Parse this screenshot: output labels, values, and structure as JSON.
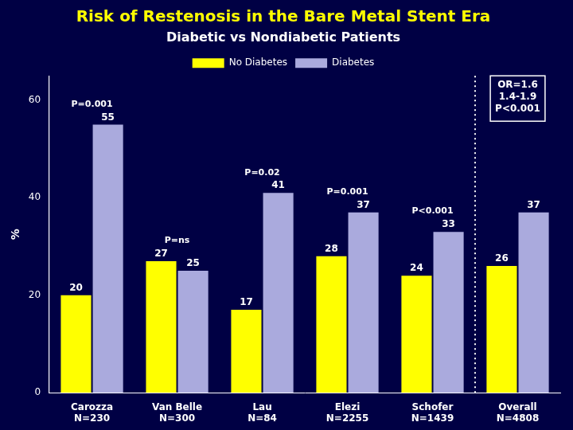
{
  "chart_data": {
    "type": "bar",
    "title": "Risk of Restenosis in the Bare Metal Stent Era",
    "subtitle": "Diabetic vs Nondiabetic Patients",
    "categories": [
      "Carozza",
      "Van Belle",
      "Lau",
      "Elezi",
      "Schofer",
      "Overall"
    ],
    "n_values": [
      "N=230",
      "N=300",
      "N=84",
      "N=2255",
      "N=1439",
      "N=4808"
    ],
    "series": [
      {
        "name": "No Diabetes",
        "color": "#FFFF00",
        "values": [
          20,
          27,
          17,
          28,
          24,
          26
        ]
      },
      {
        "name": "Diabetes",
        "color": "#AAAADD",
        "values": [
          55,
          25,
          41,
          37,
          33,
          37
        ]
      }
    ],
    "ylabel": "%",
    "ylim": [
      0,
      65
    ],
    "yticks": [
      0,
      20,
      40,
      60
    ],
    "p_values": [
      "P=0.001",
      "P=ns",
      "P=0.02",
      "P=0.001",
      "P<0.001",
      null
    ],
    "annotation": "OR=1.6\n1.4-1.9\nP<0.001",
    "data_labels": true,
    "grid": false,
    "legend": "top"
  }
}
